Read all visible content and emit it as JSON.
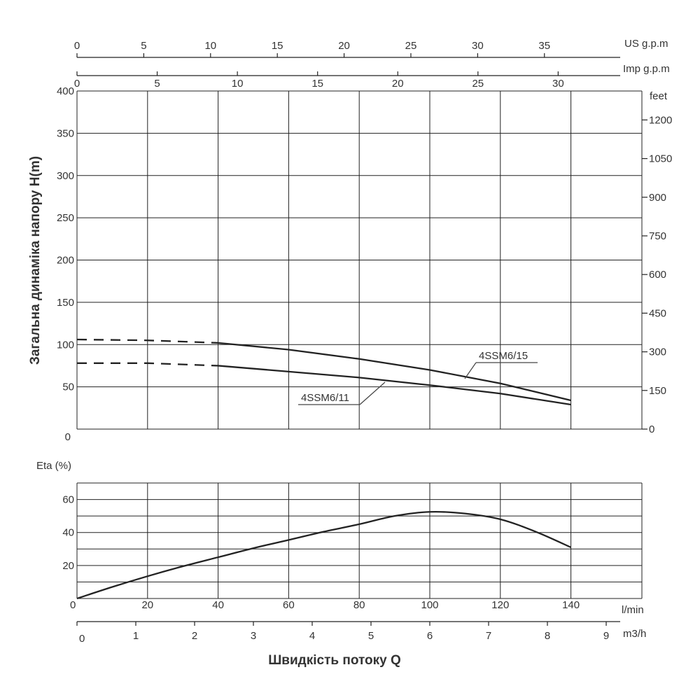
{
  "chart_data": [
    {
      "type": "line",
      "ylabel": "Загальна динаміка напору H(m)",
      "ylim": [
        0,
        400
      ],
      "y_ticks": [
        "0",
        "50",
        "100",
        "150",
        "200",
        "250",
        "300",
        "350",
        "400"
      ],
      "xlim": [
        0,
        140
      ],
      "x_unit": "l/min",
      "right_axis": {
        "unit": "feet",
        "ticks": [
          "0",
          "150",
          "300",
          "450",
          "600",
          "750",
          "900",
          "1050",
          "1200"
        ]
      },
      "top_axes": [
        {
          "unit": "US g.p.m",
          "ticks": [
            "0",
            "5",
            "10",
            "15",
            "20",
            "25",
            "30",
            "35"
          ]
        },
        {
          "unit": "Imp g.p.m",
          "ticks": [
            "0",
            "5",
            "10",
            "15",
            "20",
            "25",
            "30"
          ]
        }
      ],
      "grid": true,
      "series": [
        {
          "name": "4SSM6/15",
          "extrapolated": {
            "x": [
              0,
              20,
              40
            ],
            "y": [
              106,
              105,
              102
            ]
          },
          "x": [
            40,
            60,
            80,
            100,
            120,
            140
          ],
          "y": [
            102,
            94,
            83,
            70,
            54,
            34
          ]
        },
        {
          "name": "4SSM6/11",
          "extrapolated": {
            "x": [
              0,
              20,
              40
            ],
            "y": [
              78,
              78,
              75
            ]
          },
          "x": [
            40,
            60,
            80,
            100,
            120,
            140
          ],
          "y": [
            75,
            68,
            61,
            52,
            42,
            29
          ]
        }
      ]
    },
    {
      "type": "line",
      "ylabel": "Eta (%)",
      "ylim": [
        0,
        70
      ],
      "y_ticks": [
        "0",
        "20",
        "40",
        "60"
      ],
      "xlim": [
        0,
        140
      ],
      "x_unit": "l/min",
      "x_ticks": [
        "20",
        "40",
        "60",
        "80",
        "100",
        "120",
        "140"
      ],
      "grid": true,
      "series": [
        {
          "x": [
            0,
            10,
            20,
            30,
            40,
            50,
            60,
            70,
            80,
            90,
            100,
            110,
            120,
            130,
            140
          ],
          "y": [
            0,
            7,
            13.5,
            19.5,
            25,
            30.5,
            35.5,
            40.5,
            45,
            50,
            52.5,
            51.5,
            48,
            40.5,
            31
          ]
        }
      ]
    }
  ],
  "bottom_axis": {
    "unit": "m3/h",
    "zero_label": "0",
    "ticks": [
      "1",
      "2",
      "3",
      "4",
      "5",
      "6",
      "7",
      "8",
      "9"
    ]
  },
  "lpm_zero_label": "0",
  "xlabel": "Швидкість потоку Q"
}
